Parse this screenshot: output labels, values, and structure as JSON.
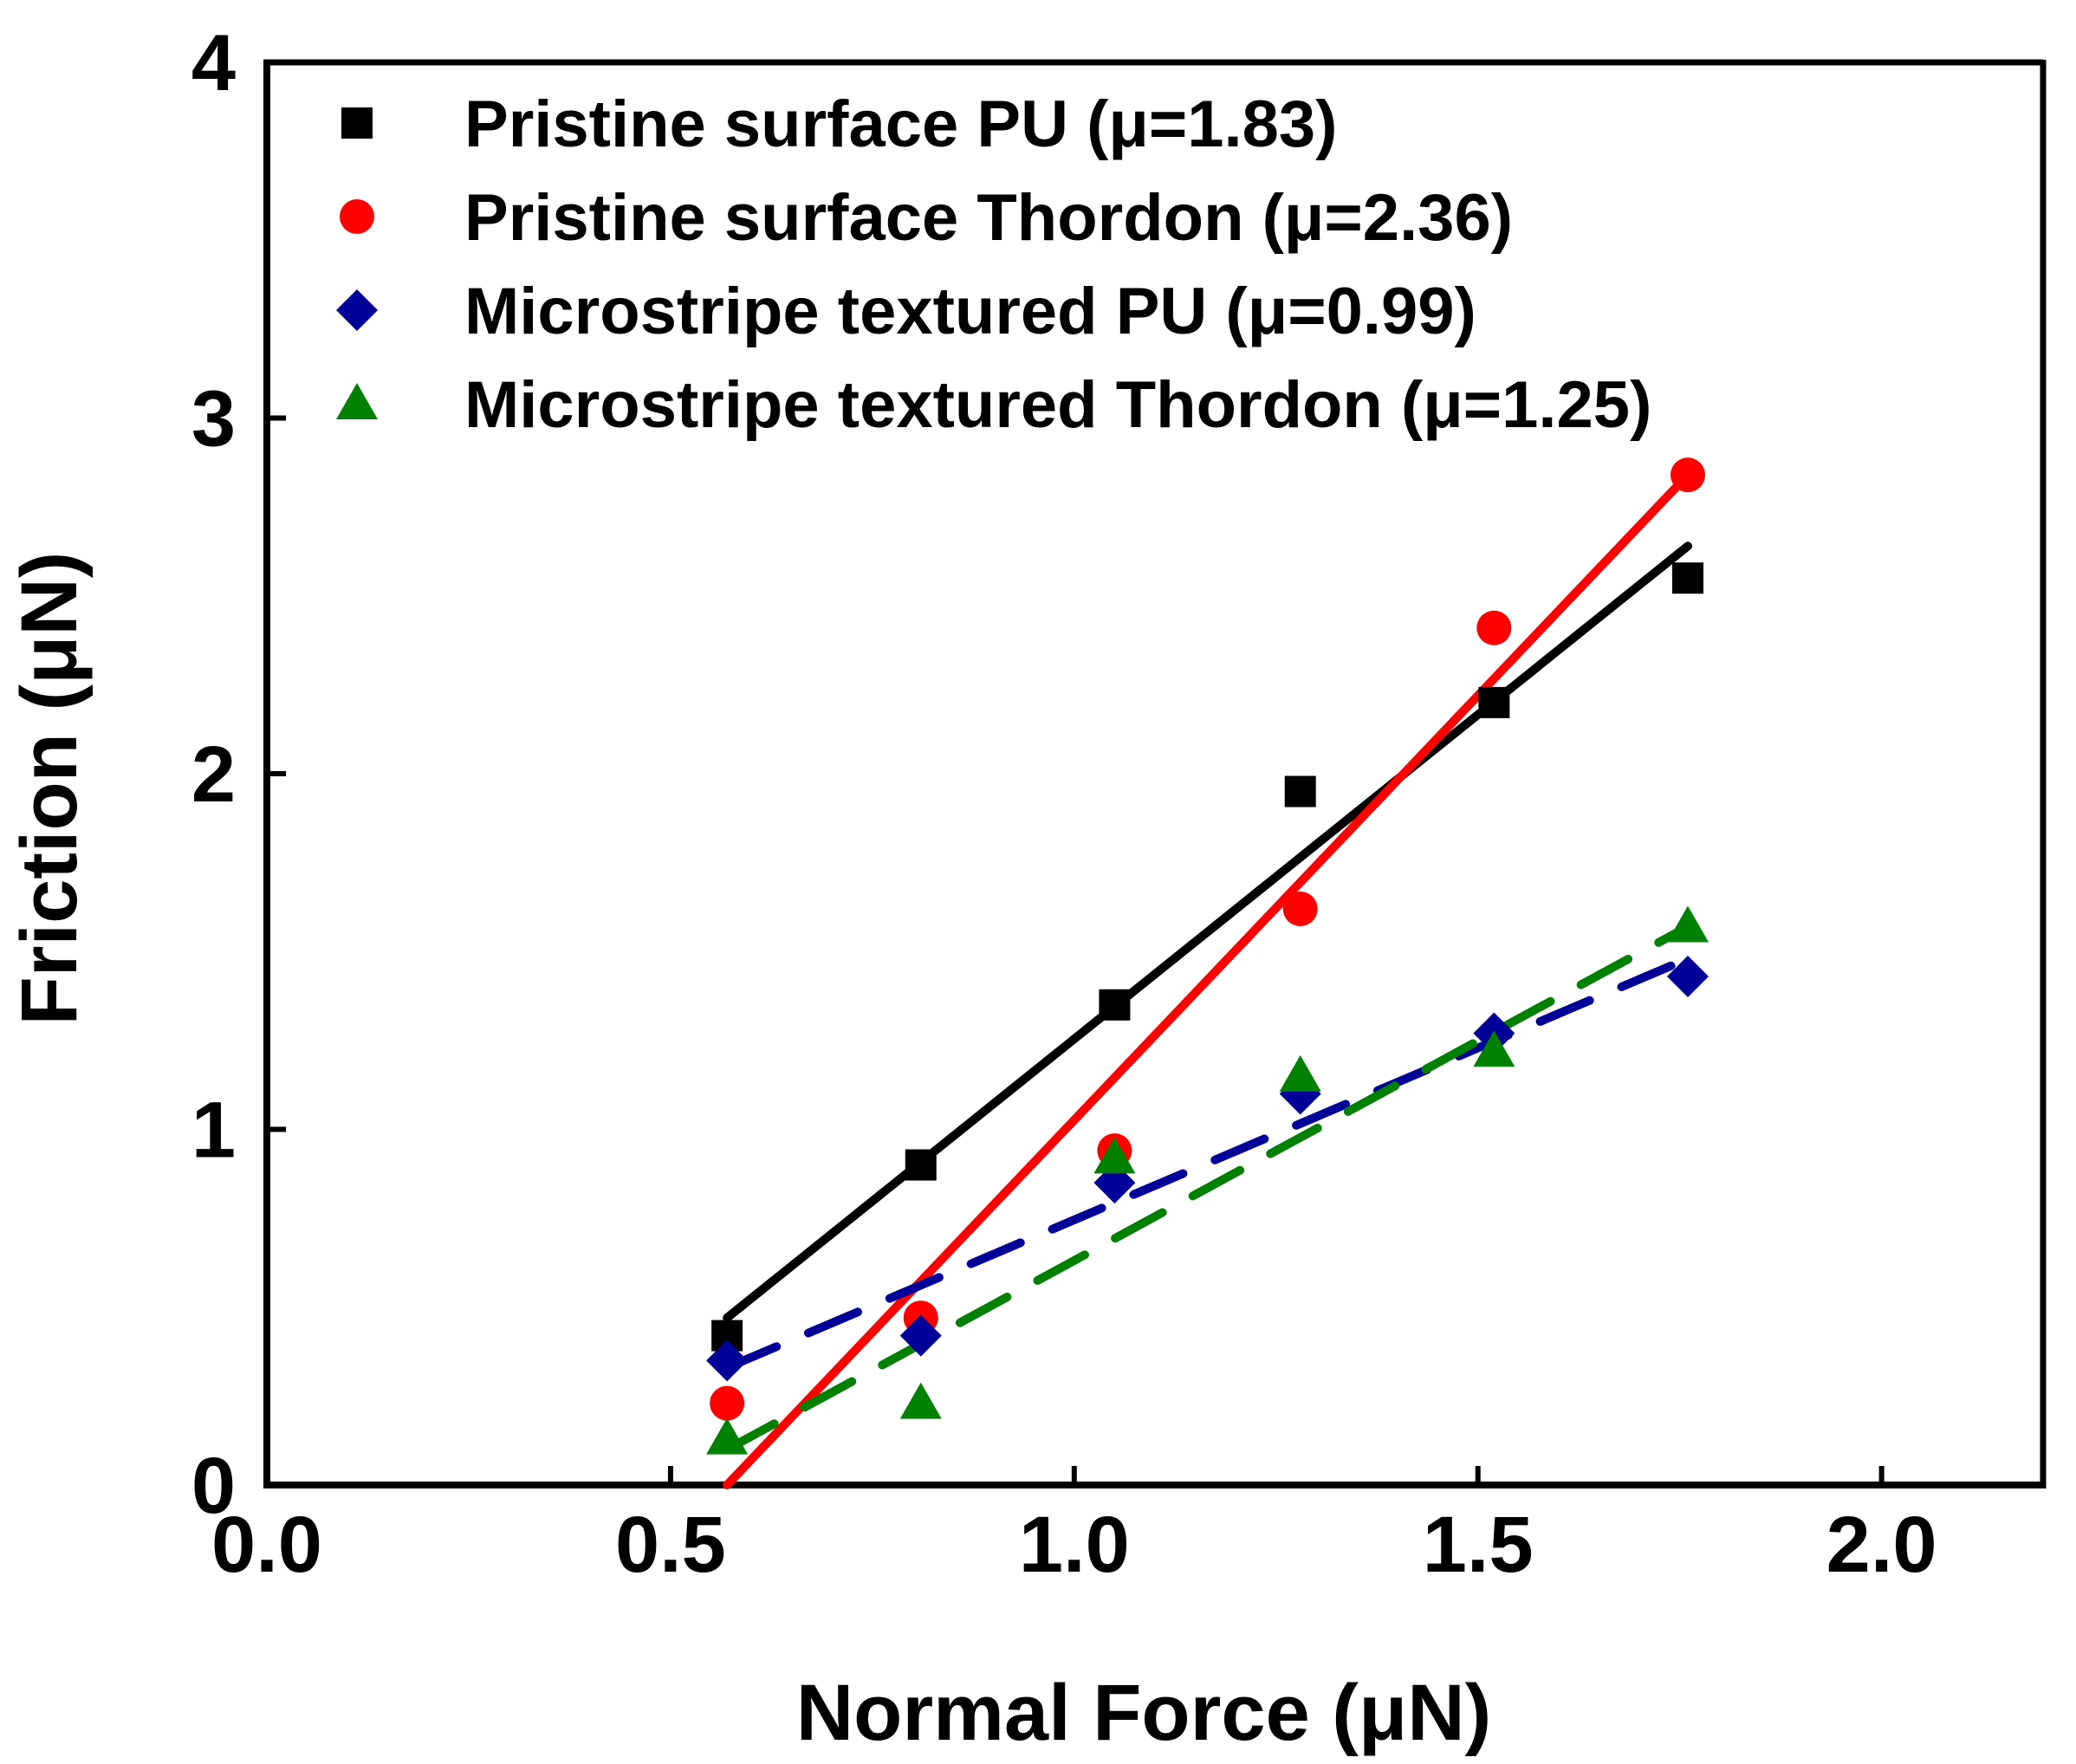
{
  "chart_data": {
    "type": "scatter",
    "xlabel": "Normal Force (μN)",
    "ylabel": "Friction (μN)",
    "xlim": [
      0.0,
      2.2
    ],
    "ylim": [
      0,
      4
    ],
    "xticks": [
      0.0,
      0.5,
      1.0,
      1.5,
      2.0
    ],
    "xtick_labels": [
      "0.0",
      "0.5",
      "1.0",
      "1.5",
      "2.0"
    ],
    "yticks": [
      0,
      1,
      2,
      3,
      4
    ],
    "ytick_labels": [
      "0",
      "1",
      "2",
      "3",
      "4"
    ],
    "grid": false,
    "legend_position": "top-left",
    "series": [
      {
        "name": "Pristine surface PU (μ=1.83)",
        "color": "#000000",
        "marker": "square",
        "line_style": "solid",
        "points": [
          [
            0.57,
            0.42
          ],
          [
            0.81,
            0.9
          ],
          [
            1.05,
            1.35
          ],
          [
            1.28,
            1.95
          ],
          [
            1.52,
            2.2
          ],
          [
            1.76,
            2.55
          ]
        ],
        "fit": [
          [
            0.57,
            0.47
          ],
          [
            1.76,
            2.64
          ]
        ]
      },
      {
        "name": "Pristine surface Thordon (μ=2.36)",
        "color": "#ff0000",
        "marker": "circle",
        "line_style": "solid",
        "points": [
          [
            0.57,
            0.23
          ],
          [
            0.81,
            0.47
          ],
          [
            1.05,
            0.94
          ],
          [
            1.28,
            1.62
          ],
          [
            1.52,
            2.41
          ],
          [
            1.76,
            2.84
          ]
        ],
        "fit": [
          [
            0.57,
            0.0
          ],
          [
            1.76,
            2.84
          ]
        ]
      },
      {
        "name": "Microstripe textured PU (μ=0.99)",
        "color": "#000099",
        "marker": "diamond",
        "line_style": "dashed",
        "points": [
          [
            0.57,
            0.35
          ],
          [
            0.81,
            0.42
          ],
          [
            1.05,
            0.85
          ],
          [
            1.28,
            1.1
          ],
          [
            1.52,
            1.27
          ],
          [
            1.76,
            1.43
          ]
        ],
        "fit": [
          [
            0.57,
            0.33
          ],
          [
            1.76,
            1.48
          ]
        ]
      },
      {
        "name": "Microstripe textured Thordon (μ=1.25)",
        "color": "#008000",
        "marker": "triangle",
        "line_style": "dashed",
        "points": [
          [
            0.57,
            0.13
          ],
          [
            0.81,
            0.23
          ],
          [
            1.05,
            0.92
          ],
          [
            1.28,
            1.15
          ],
          [
            1.52,
            1.22
          ],
          [
            1.76,
            1.57
          ]
        ],
        "fit": [
          [
            0.57,
            0.1
          ],
          [
            1.76,
            1.57
          ]
        ]
      }
    ]
  }
}
